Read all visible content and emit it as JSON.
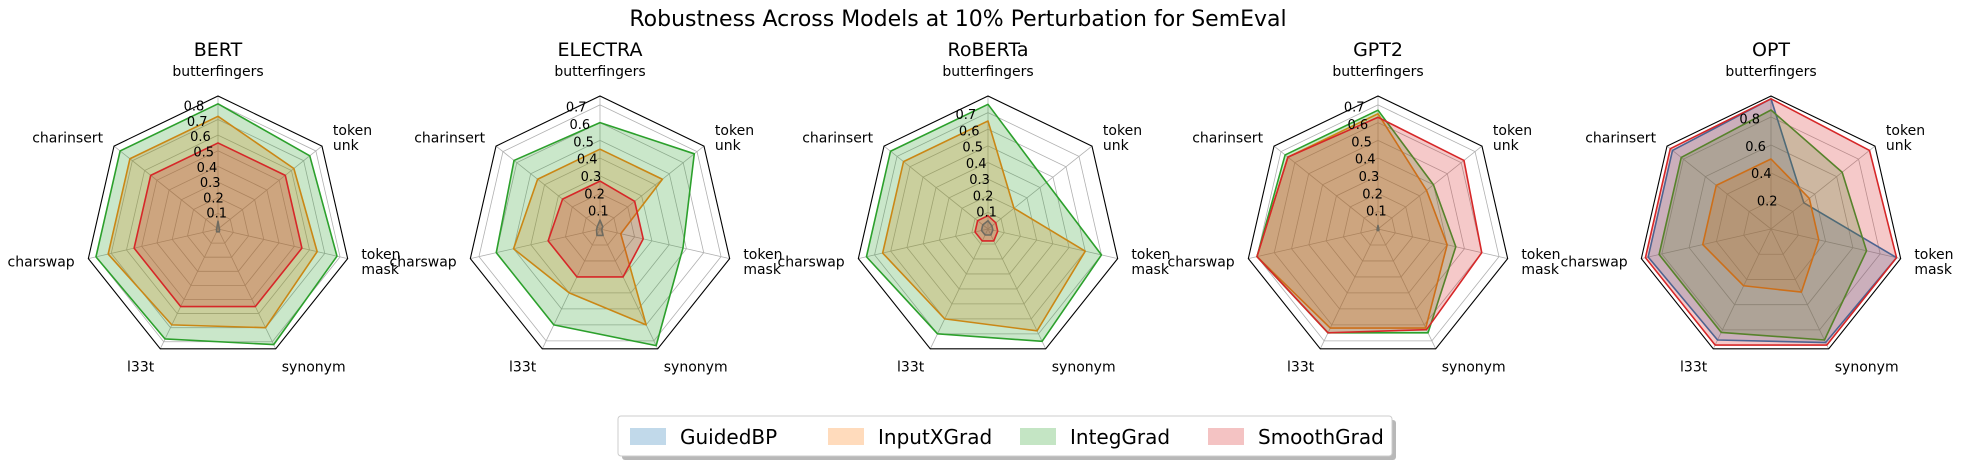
{
  "chart_data": {
    "type": "radar",
    "title": "Robustness Across Models at 10% Perturbation for SemEval",
    "axes": [
      "butterfingers",
      "token\nunk",
      "token\nmask",
      "synonym",
      "l33t",
      "charswap",
      "charinsert"
    ],
    "legend": {
      "placement": "bottom-center",
      "entries": [
        {
          "name": "GuidedBP",
          "color": "#1f77b4"
        },
        {
          "name": "InputXGrad",
          "color": "#ff7f0e"
        },
        {
          "name": "IntegGrad",
          "color": "#2ca02c"
        },
        {
          "name": "SmoothGrad",
          "color": "#d62728"
        }
      ]
    },
    "panels": [
      {
        "title": "BERT",
        "rmax": 0.85,
        "ticks": [
          "0.1",
          "0.2",
          "0.3",
          "0.4",
          "0.5",
          "0.6",
          "0.7",
          "0.8"
        ],
        "tick_values": [
          0.1,
          0.2,
          0.3,
          0.4,
          0.5,
          0.6,
          0.7,
          0.8
        ],
        "series": [
          {
            "name": "GuidedBP",
            "values": [
              0.05,
              0.01,
              0.01,
              0.02,
              0.02,
              0.01,
              0.01
            ]
          },
          {
            "name": "InputXGrad",
            "values": [
              0.72,
              0.62,
              0.65,
              0.7,
              0.68,
              0.72,
              0.72
            ]
          },
          {
            "name": "IntegGrad",
            "values": [
              0.8,
              0.75,
              0.78,
              0.82,
              0.78,
              0.8,
              0.8
            ]
          },
          {
            "name": "SmoothGrad",
            "values": [
              0.55,
              0.55,
              0.55,
              0.55,
              0.55,
              0.55,
              0.55
            ]
          }
        ]
      },
      {
        "title": "ELECTRA",
        "rmax": 0.75,
        "ticks": [
          "0.1",
          "0.2",
          "0.3",
          "0.4",
          "0.5",
          "0.6",
          "0.7"
        ],
        "tick_values": [
          0.1,
          0.2,
          0.3,
          0.4,
          0.5,
          0.6,
          0.7
        ],
        "series": [
          {
            "name": "GuidedBP",
            "values": [
              0.05,
              0.02,
              0.01,
              0.04,
              0.04,
              0.02,
              0.02
            ]
          },
          {
            "name": "InputXGrad",
            "values": [
              0.45,
              0.45,
              0.12,
              0.6,
              0.4,
              0.5,
              0.45
            ]
          },
          {
            "name": "IntegGrad",
            "values": [
              0.6,
              0.68,
              0.48,
              0.73,
              0.6,
              0.6,
              0.62
            ]
          },
          {
            "name": "SmoothGrad",
            "values": [
              0.27,
              0.25,
              0.25,
              0.3,
              0.3,
              0.3,
              0.27
            ]
          }
        ]
      },
      {
        "title": "RoBERTa",
        "rmax": 0.8,
        "ticks": [
          "0.1",
          "0.2",
          "0.3",
          "0.4",
          "0.5",
          "0.6",
          "0.7"
        ],
        "tick_values": [
          0.1,
          0.2,
          0.3,
          0.4,
          0.5,
          0.6,
          0.7
        ],
        "series": [
          {
            "name": "GuidedBP",
            "values": [
              0.05,
              0.03,
              0.03,
              0.04,
              0.04,
              0.04,
              0.04
            ]
          },
          {
            "name": "InputXGrad",
            "values": [
              0.65,
              0.2,
              0.6,
              0.68,
              0.6,
              0.65,
              0.65
            ]
          },
          {
            "name": "IntegGrad",
            "values": [
              0.75,
              0.45,
              0.7,
              0.75,
              0.7,
              0.75,
              0.75
            ]
          },
          {
            "name": "SmoothGrad",
            "values": [
              0.08,
              0.06,
              0.06,
              0.08,
              0.08,
              0.08,
              0.08
            ]
          }
        ]
      },
      {
        "title": "GPT2",
        "rmax": 0.75,
        "ticks": [
          "0.1",
          "0.2",
          "0.3",
          "0.4",
          "0.5",
          "0.6",
          "0.7"
        ],
        "tick_values": [
          0.1,
          0.2,
          0.3,
          0.4,
          0.5,
          0.6,
          0.7
        ],
        "series": [
          {
            "name": "GuidedBP",
            "values": [
              0.02,
              0.005,
              0.005,
              0.01,
              0.01,
              0.005,
              0.005
            ]
          },
          {
            "name": "InputXGrad",
            "values": [
              0.65,
              0.35,
              0.4,
              0.62,
              0.62,
              0.7,
              0.65
            ]
          },
          {
            "name": "IntegGrad",
            "values": [
              0.67,
              0.4,
              0.45,
              0.65,
              0.65,
              0.7,
              0.67
            ]
          },
          {
            "name": "SmoothGrad",
            "values": [
              0.63,
              0.62,
              0.6,
              0.63,
              0.65,
              0.7,
              0.65
            ]
          }
        ]
      },
      {
        "title": "OPT",
        "rmax": 0.95,
        "ticks": [
          "0.2",
          "0.4",
          "0.6",
          "0.8"
        ],
        "tick_values": [
          0.2,
          0.4,
          0.6,
          0.8
        ],
        "series": [
          {
            "name": "GuidedBP",
            "values": [
              0.93,
              0.3,
              0.92,
              0.9,
              0.88,
              0.9,
              0.9
            ]
          },
          {
            "name": "InputXGrad",
            "values": [
              0.5,
              0.35,
              0.35,
              0.5,
              0.45,
              0.5,
              0.5
            ]
          },
          {
            "name": "IntegGrad",
            "values": [
              0.85,
              0.65,
              0.7,
              0.88,
              0.82,
              0.82,
              0.82
            ]
          },
          {
            "name": "SmoothGrad",
            "values": [
              0.93,
              0.9,
              0.92,
              0.92,
              0.92,
              0.92,
              0.92
            ]
          }
        ]
      }
    ]
  }
}
